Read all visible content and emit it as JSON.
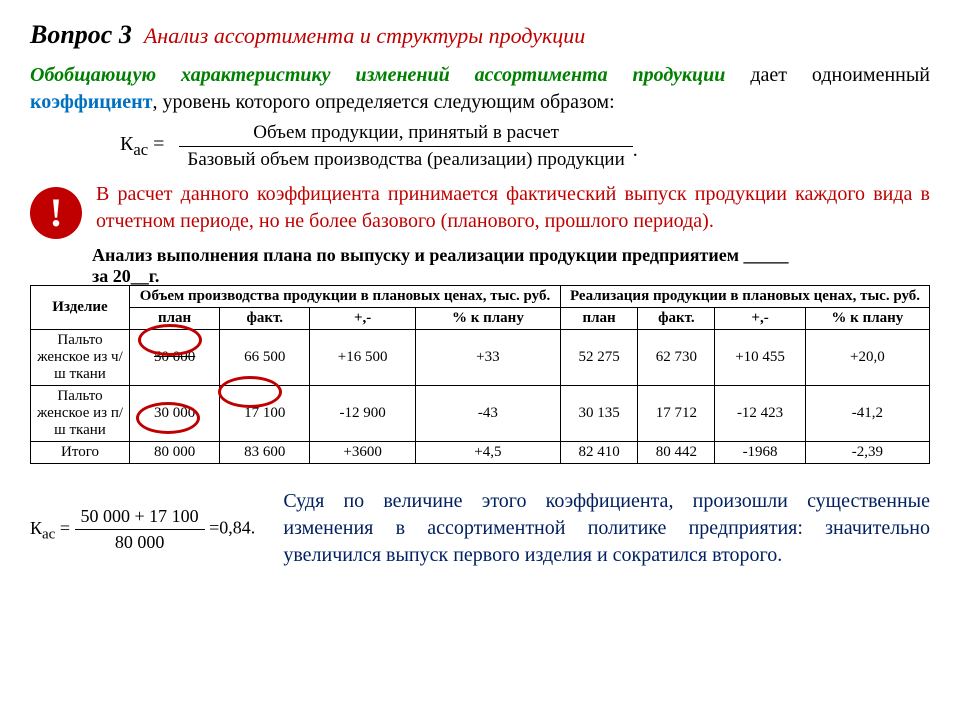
{
  "title": {
    "question_number": "Вопрос 3",
    "question_text": "Анализ ассортимента и структуры продукции"
  },
  "intro": {
    "italic_green": "Обобщающую характеристику изменений ассортимента продукции",
    "after_green": " дает одноименный ",
    "blue_word": "коэффициент",
    "tail": ", уровень которого определяется следующим образом:"
  },
  "formula1": {
    "lhs": "К",
    "sub": "ас",
    "eq": " = ",
    "numerator": "Объем продукции, принятый в расчет",
    "denominator": "Базовый объем производства (реализации) продукции"
  },
  "note": {
    "mark": "!",
    "text": "В расчет данного коэффициента принимается фактический выпуск продукции каждого вида в отчетном периоде, но не более базового (планового, прошлого периода)."
  },
  "table_heading": {
    "line1": "Анализ выполнения плана по выпуску и реализации продукции предприятием _____",
    "line2": "за 20__г."
  },
  "table": {
    "col_item": "Изделие",
    "group1": "Объем производства продукции в плановых ценах, тыс. руб.",
    "group2": "Реализация продукции в плановых ценах, тыс. руб.",
    "subheaders": [
      "план",
      "факт.",
      "+,-",
      "% к плану",
      "план",
      "факт.",
      "+,-",
      "% к плану"
    ],
    "rows": [
      {
        "item": "Пальто женское из ч/ш ткани",
        "cells": [
          "50 000",
          "66 500",
          "+16 500",
          "+33",
          "52 275",
          "62 730",
          "+10 455",
          "+20,0"
        ],
        "strike0": true
      },
      {
        "item": "Пальто женское из п/ш ткани",
        "cells": [
          "30 000",
          "17 100",
          "-12 900",
          "-43",
          "30 135",
          "17 712",
          "-12 423",
          "-41,2"
        ],
        "strike0": false
      },
      {
        "item": "Итого",
        "cells": [
          "80 000",
          "83 600",
          "+3600",
          "+4,5",
          "82 410",
          "80 442",
          "-1968",
          "-2,39"
        ],
        "strike0": false
      }
    ]
  },
  "formula2": {
    "lhs": "К",
    "sub": "ас",
    "eq": "=",
    "num": "50 000 + 17 100",
    "den": "80 000",
    "rhs": "=0,84."
  },
  "conclusion": "Судя по величине этого коэффициента, произошли существенные изменения в ассортиментной политике предприятия: значительно увеличился выпуск первого изделия и сократился второго."
}
